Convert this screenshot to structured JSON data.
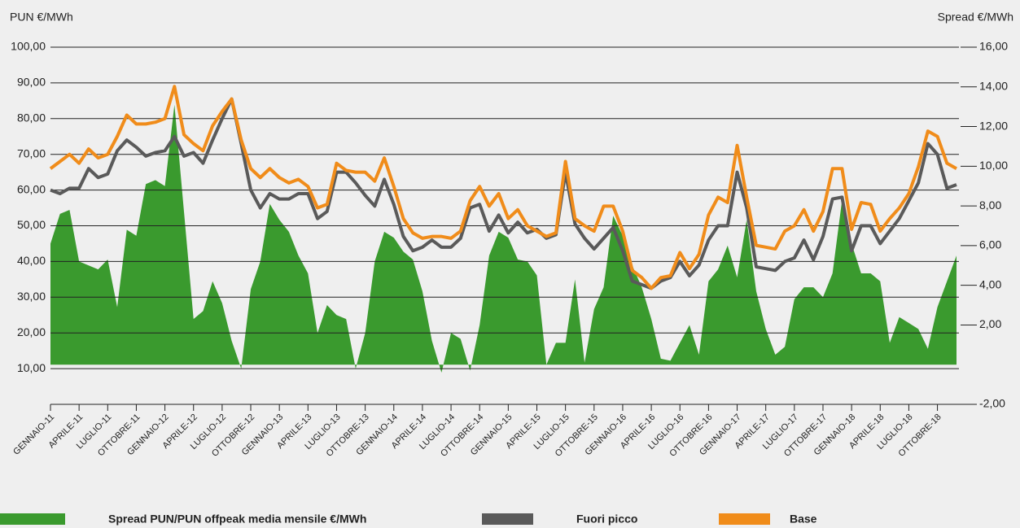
{
  "chart_data": {
    "type": "line",
    "y_label": "PUN €/MWh",
    "y2_label": "Spread €/MWh",
    "categories": [
      "GENNAIO-11",
      null,
      null,
      "APRILE-11",
      null,
      null,
      "LUGLIO-11",
      null,
      null,
      "OTTOBRE-11",
      null,
      null,
      "GENNAIO-12",
      null,
      null,
      "APRILE-12",
      null,
      null,
      "LUGLIO-12",
      null,
      null,
      "OTTOBRE-12",
      null,
      null,
      "GENNAIO-13",
      null,
      null,
      "APRILE-13",
      null,
      null,
      "LUGLIO-13",
      null,
      null,
      "OTTOBRE-13",
      null,
      null,
      "GENNAIO-14",
      null,
      null,
      "APRILE-14",
      null,
      null,
      "LUGLIO-14",
      null,
      null,
      "OTTOBRE-14",
      null,
      null,
      "GENNAIO-15",
      null,
      null,
      "APRILE-15",
      null,
      null,
      "LUGLIO-15",
      null,
      null,
      "OTTOBRE-15",
      null,
      null,
      "GENNAIO-16",
      null,
      null,
      "APRILE-16",
      null,
      null,
      "LUGLIO-16",
      null,
      null,
      "OTTOBRE-16",
      null,
      null,
      "GENNAIO-17",
      null,
      null,
      "APRILE-17",
      null,
      null,
      "LUGLIO-17",
      null,
      null,
      "OTTOBRE-17",
      null,
      null,
      "GENNAIO-18",
      null,
      null,
      "APRILE-18",
      null,
      null,
      "LUGLIO-18",
      null,
      null,
      "OTTOBRE-18",
      null,
      null
    ],
    "series": [
      {
        "name": "Spread PUN/PUN offpeak media mensile €/MWh",
        "color": "#3a9a2e",
        "axis": "y2",
        "kind": "area",
        "values": [
          6.1,
          7.6,
          7.8,
          5.2,
          5.0,
          4.8,
          5.3,
          2.9,
          6.8,
          6.5,
          9.1,
          9.3,
          9.0,
          13.1,
          7.7,
          2.3,
          2.7,
          4.2,
          3.1,
          1.2,
          -0.2,
          3.8,
          5.2,
          8.1,
          7.3,
          6.7,
          5.5,
          4.6,
          1.6,
          3.0,
          2.5,
          2.3,
          -0.2,
          1.6,
          5.2,
          6.7,
          6.4,
          5.7,
          5.3,
          3.7,
          1.2,
          -0.4,
          1.6,
          1.3,
          -0.3,
          2.0,
          5.5,
          6.7,
          6.4,
          5.3,
          5.2,
          4.5,
          0.0,
          1.1,
          1.1,
          4.3,
          0.1,
          2.8,
          3.9,
          7.5,
          6.5,
          5.0,
          3.9,
          2.3,
          0.3,
          0.2,
          1.1,
          2.0,
          0.5,
          4.2,
          4.8,
          6.0,
          4.4,
          7.3,
          3.7,
          1.8,
          0.5,
          0.9,
          3.3,
          3.9,
          3.9,
          3.4,
          4.6,
          8.3,
          6.1,
          4.6,
          4.6,
          4.2,
          1.1,
          2.4,
          2.1,
          1.8,
          0.8,
          2.9,
          4.2,
          5.5
        ]
      },
      {
        "name": "Fuori picco",
        "color": "#5a5a5a",
        "values": [
          60,
          59,
          60.5,
          60.5,
          66,
          63.5,
          64.5,
          71,
          74,
          72,
          69.5,
          70.5,
          71,
          75,
          69.5,
          70.5,
          67.5,
          74,
          80,
          85.5,
          73,
          60,
          55,
          59,
          57.5,
          57.5,
          59,
          59,
          52,
          54,
          65,
          65,
          62,
          58.5,
          55.5,
          63,
          56,
          47,
          43,
          44,
          46,
          44,
          44,
          46.5,
          55,
          56,
          48.5,
          53,
          48,
          51,
          48,
          49,
          46.5,
          47.5,
          65,
          50.5,
          46.5,
          43.5,
          46.5,
          49.5,
          43,
          34.5,
          33.5,
          32.5,
          34.5,
          35.5,
          40,
          36,
          39,
          46,
          50,
          50,
          65,
          55,
          38.5,
          38,
          37.5,
          40,
          41,
          46,
          40.5,
          47,
          57.5,
          58,
          43,
          50,
          50,
          45,
          48.5,
          52,
          57,
          62,
          73,
          70,
          60.5,
          61.5
        ]
      },
      {
        "name": "Base",
        "color": "#f08c1a",
        "values": [
          66,
          68,
          70,
          67.5,
          71.5,
          69,
          70,
          75,
          81,
          78.5,
          78.5,
          79,
          80,
          89,
          75.5,
          73,
          71,
          78,
          82,
          85.5,
          74,
          66,
          63.5,
          66,
          63.5,
          62,
          63,
          61,
          55,
          56,
          67.5,
          65.5,
          65,
          65,
          62.5,
          69,
          61,
          52,
          48,
          46.5,
          47,
          47,
          46.5,
          48.5,
          57,
          61,
          55.5,
          59,
          52,
          54.5,
          50,
          48.5,
          47,
          48,
          68,
          52,
          50,
          48.5,
          55.5,
          55.5,
          48.5,
          37.5,
          35.5,
          32.5,
          35.5,
          36,
          42.5,
          38,
          42,
          53,
          58,
          56.5,
          72.5,
          58,
          44.5,
          44,
          43.5,
          48.5,
          50,
          54.5,
          48.5,
          54,
          66,
          66,
          49,
          56.5,
          56,
          48.5,
          52,
          55,
          59,
          66.5,
          76.5,
          75,
          67.5,
          66
        ]
      }
    ],
    "ylim": [
      0,
      100
    ],
    "yticks": [
      {
        "value": 10,
        "label": "10,00"
      },
      {
        "value": 20,
        "label": "20,00"
      },
      {
        "value": 30,
        "label": "30,00"
      },
      {
        "value": 40,
        "label": "40,00"
      },
      {
        "value": 50,
        "label": "50,00"
      },
      {
        "value": 60,
        "label": "60,00"
      },
      {
        "value": 70,
        "label": "70,00"
      },
      {
        "value": 80,
        "label": "80,00"
      },
      {
        "value": 90,
        "label": "90,00"
      },
      {
        "value": 100,
        "label": "100,00"
      }
    ],
    "y2lim": [
      -2,
      16
    ],
    "y2ticks": [
      {
        "value": -2,
        "label": "-2,00"
      },
      {
        "value": 2,
        "label": "2,00"
      },
      {
        "value": 4,
        "label": "4,00"
      },
      {
        "value": 6,
        "label": "6,00"
      },
      {
        "value": 8,
        "label": "8,00"
      },
      {
        "value": 10,
        "label": "10,00"
      },
      {
        "value": 12,
        "label": "12,00"
      },
      {
        "value": 14,
        "label": "14,00"
      },
      {
        "value": 16,
        "label": "16,00"
      }
    ],
    "grid": true
  }
}
